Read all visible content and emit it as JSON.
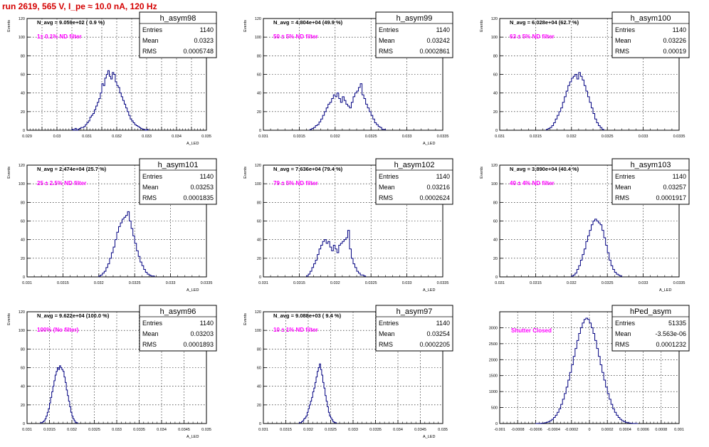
{
  "page": {
    "title": "run 2619,   565 V, I_pe ≈ 10.0 nA, 120 Hz",
    "colors": {
      "title": "#d40000",
      "annotation": "#ff00ff",
      "histogram": "#000080"
    }
  },
  "chart_data": [
    {
      "type": "bar",
      "hist_name": "h_asym98",
      "navg": "N_avg = 9.059e+02 ( 0.9 %)",
      "annotation": "1± 0.1% ND filter",
      "stats": {
        "entries": "1140",
        "mean": "0.0323",
        "rms": "0.0005748"
      },
      "ylabel": "Events",
      "xlabel": "A_LED",
      "xlim": [
        0.029,
        0.035
      ],
      "ylim": [
        0,
        120
      ],
      "xticks": [
        0.029,
        0.0295,
        0.03,
        0.0305,
        0.031,
        0.0315,
        0.032,
        0.0325,
        0.033,
        0.0335,
        0.034,
        0.0345,
        0.035
      ],
      "xtick_labels": [
        "0.029",
        "",
        "0.03",
        "",
        "0.031",
        "",
        "0.032",
        "",
        "0.033",
        "",
        "0.034",
        "",
        "0.035"
      ],
      "yticks": [
        0,
        20,
        40,
        60,
        80,
        100,
        120
      ],
      "bin_start": 0.0305,
      "bin_width": 5e-05,
      "values": [
        1,
        0,
        2,
        0,
        1,
        2,
        3,
        3,
        4,
        6,
        8,
        10,
        14,
        16,
        18,
        22,
        26,
        30,
        34,
        40,
        50,
        48,
        56,
        60,
        64,
        58,
        55,
        62,
        60,
        52,
        48,
        46,
        40,
        36,
        32,
        28,
        24,
        20,
        16,
        12,
        10,
        8,
        6,
        5,
        4,
        3,
        2,
        1,
        1,
        0,
        1
      ]
    },
    {
      "type": "bar",
      "hist_name": "h_asym99",
      "navg": "N_avg = 4.804e+04 (49.9 %)",
      "annotation": "50 ± 5% ND filter",
      "stats": {
        "entries": "1140",
        "mean": "0.03242",
        "rms": "0.0002861"
      },
      "ylabel": "Events",
      "xlabel": "A_LED",
      "xlim": [
        0.031,
        0.0335
      ],
      "ylim": [
        0,
        120
      ],
      "xticks": [
        0.031,
        0.0315,
        0.032,
        0.0325,
        0.033,
        0.0335
      ],
      "xtick_labels": [
        "0.031",
        "0.0315",
        "0.032",
        "0.0325",
        "0.033",
        "0.0335"
      ],
      "yticks": [
        0,
        20,
        40,
        60,
        80,
        100,
        120
      ],
      "bin_start": 0.03165,
      "bin_width": 2.5e-05,
      "values": [
        1,
        2,
        3,
        5,
        6,
        9,
        12,
        16,
        20,
        24,
        28,
        30,
        34,
        38,
        36,
        40,
        34,
        30,
        36,
        32,
        28,
        26,
        24,
        30,
        36,
        40,
        42,
        46,
        50,
        38,
        34,
        28,
        24,
        20,
        16,
        12,
        8,
        6,
        4,
        3,
        1,
        1
      ]
    },
    {
      "type": "bar",
      "hist_name": "h_asym100",
      "navg": "N_avg = 6.028e+04 (62.7 %)",
      "annotation": "63 ± 5% ND filter",
      "stats": {
        "entries": "1140",
        "mean": "0.03226",
        "rms": "0.00019"
      },
      "ylabel": "Events",
      "xlabel": "",
      "xlim": [
        0.031,
        0.0335
      ],
      "ylim": [
        0,
        120
      ],
      "xticks": [
        0.031,
        0.0315,
        0.032,
        0.0325,
        0.033,
        0.0335
      ],
      "xtick_labels": [
        "0.031",
        "0.0315",
        "0.032",
        "0.0325",
        "0.033",
        "0.0335"
      ],
      "yticks": [
        0,
        20,
        40,
        60,
        80,
        100,
        120
      ],
      "bin_start": 0.03165,
      "bin_width": 2.5e-05,
      "values": [
        1,
        2,
        3,
        5,
        8,
        12,
        16,
        20,
        24,
        30,
        36,
        42,
        48,
        52,
        56,
        58,
        60,
        55,
        62,
        58,
        54,
        48,
        42,
        36,
        30,
        24,
        18,
        12,
        8,
        5,
        3,
        1
      ]
    },
    {
      "type": "bar",
      "hist_name": "h_asym101",
      "navg": "N_avg = 2.474e+04 (25.7 %)",
      "annotation": "25 ± 2.5% ND filter",
      "stats": {
        "entries": "1140",
        "mean": "0.03253",
        "rms": "0.0001835"
      },
      "ylabel": "Events",
      "xlabel": "A_LED",
      "xlim": [
        0.031,
        0.0335
      ],
      "ylim": [
        0,
        120
      ],
      "xticks": [
        0.031,
        0.0315,
        0.032,
        0.0325,
        0.033,
        0.0335
      ],
      "xtick_labels": [
        "0.031",
        "0.0315",
        "0.032",
        "0.0325",
        "0.033",
        "0.0335"
      ],
      "yticks": [
        0,
        20,
        40,
        60,
        80,
        100,
        120
      ],
      "bin_start": 0.032,
      "bin_width": 2.5e-05,
      "values": [
        1,
        2,
        4,
        6,
        10,
        14,
        20,
        26,
        32,
        40,
        48,
        54,
        58,
        62,
        64,
        66,
        70,
        60,
        52,
        44,
        36,
        28,
        22,
        16,
        12,
        8,
        5,
        3,
        2,
        1,
        1
      ]
    },
    {
      "type": "bar",
      "hist_name": "h_asym102",
      "navg": "N_avg = 7.636e+04 (79.4 %)",
      "annotation": "79 ± 5% ND filter",
      "stats": {
        "entries": "1140",
        "mean": "0.03216",
        "rms": "0.0002624"
      },
      "ylabel": "Events",
      "xlabel": "A_LED",
      "xlim": [
        0.031,
        0.0335
      ],
      "ylim": [
        0,
        120
      ],
      "xticks": [
        0.031,
        0.0315,
        0.032,
        0.0325,
        0.033,
        0.0335
      ],
      "xtick_labels": [
        "0.031",
        "0.0315",
        "0.032",
        "0.0325",
        "0.033",
        "0.0335"
      ],
      "yticks": [
        0,
        20,
        40,
        60,
        80,
        100,
        120
      ],
      "bin_start": 0.0316,
      "bin_width": 2.5e-05,
      "values": [
        1,
        3,
        6,
        10,
        14,
        18,
        24,
        30,
        34,
        38,
        40,
        36,
        38,
        32,
        28,
        34,
        30,
        26,
        34,
        36,
        38,
        40,
        42,
        50,
        30,
        20,
        14,
        10,
        6,
        4,
        2,
        2,
        1
      ]
    },
    {
      "type": "bar",
      "hist_name": "h_asym103",
      "navg": "N_avg = 3.890e+04 (40.4 %)",
      "annotation": "40 ± 4% ND filter",
      "stats": {
        "entries": "1140",
        "mean": "0.03257",
        "rms": "0.0001917"
      },
      "ylabel": "Events",
      "xlabel": "A_LED",
      "xlim": [
        0.031,
        0.0335
      ],
      "ylim": [
        0,
        120
      ],
      "xticks": [
        0.031,
        0.0315,
        0.032,
        0.0325,
        0.033,
        0.0335
      ],
      "xtick_labels": [
        "0.031",
        "0.0315",
        "0.032",
        "0.0325",
        "0.033",
        "0.0335"
      ],
      "yticks": [
        0,
        20,
        40,
        60,
        80,
        100,
        120
      ],
      "bin_start": 0.032,
      "bin_width": 2.5e-05,
      "values": [
        1,
        2,
        4,
        8,
        12,
        18,
        24,
        30,
        38,
        44,
        50,
        56,
        60,
        62,
        60,
        58,
        56,
        50,
        42,
        34,
        26,
        18,
        12,
        8,
        5,
        3,
        2,
        1
      ]
    },
    {
      "type": "bar",
      "hist_name": "h_asym96",
      "navg": "N_avg = 9.622e+04 (100.0 %)",
      "annotation": "100% (No filter)",
      "stats": {
        "entries": "1140",
        "mean": "0.03203",
        "rms": "0.0001893"
      },
      "ylabel": "Events",
      "xlabel": "A_LED",
      "xlim": [
        0.031,
        0.035
      ],
      "ylim": [
        0,
        120
      ],
      "xticks": [
        0.031,
        0.0315,
        0.032,
        0.0325,
        0.033,
        0.0335,
        0.034,
        0.0345,
        0.035
      ],
      "xtick_labels": [
        "0.031",
        "0.0315",
        "0.032",
        "0.0325",
        "0.033",
        "0.0335",
        "0.034",
        "0.0345",
        "0.035"
      ],
      "yticks": [
        0,
        20,
        40,
        60,
        80,
        100,
        120
      ],
      "bin_start": 0.0313,
      "bin_width": 2.5e-05,
      "values": [
        1,
        1,
        2,
        3,
        5,
        8,
        12,
        16,
        22,
        28,
        34,
        40,
        46,
        52,
        56,
        60,
        58,
        62,
        60,
        58,
        56,
        50,
        44,
        36,
        30,
        24,
        18,
        12,
        8,
        5,
        3,
        1,
        1
      ]
    },
    {
      "type": "bar",
      "hist_name": "h_asym97",
      "navg": "N_avg = 9.088e+03 ( 9.4 %)",
      "annotation": "10 ± 1% ND filter",
      "stats": {
        "entries": "1140",
        "mean": "0.03254",
        "rms": "0.0002205"
      },
      "ylabel": "Events",
      "xlabel": "A_LED",
      "xlim": [
        0.031,
        0.035
      ],
      "ylim": [
        0,
        120
      ],
      "xticks": [
        0.031,
        0.0315,
        0.032,
        0.0325,
        0.033,
        0.0335,
        0.034,
        0.0345,
        0.035
      ],
      "xtick_labels": [
        "0.031",
        "0.0315",
        "0.032",
        "0.0325",
        "0.033",
        "0.0335",
        "0.034",
        "0.0345",
        "0.035"
      ],
      "yticks": [
        0,
        20,
        40,
        60,
        80,
        100,
        120
      ],
      "bin_start": 0.0318,
      "bin_width": 2.5e-05,
      "values": [
        1,
        1,
        2,
        3,
        5,
        6,
        8,
        12,
        16,
        20,
        24,
        28,
        34,
        38,
        44,
        50,
        56,
        60,
        64,
        58,
        52,
        44,
        38,
        30,
        24,
        18,
        12,
        8,
        6,
        4,
        2,
        1,
        1
      ]
    },
    {
      "type": "bar",
      "hist_name": "hPed_asym",
      "annotation": "Shutter Closed",
      "stats": {
        "entries": "51335",
        "mean": "-3.563e-06",
        "rms": "0.0001232"
      },
      "ylabel": "",
      "xlabel": "",
      "xlim": [
        -0.001,
        0.001
      ],
      "ylim": [
        0,
        3500
      ],
      "xticks": [
        -0.001,
        -0.0008,
        -0.0006,
        -0.0004,
        -0.0002,
        0,
        0.0002,
        0.0004,
        0.0006,
        0.0008,
        0.001
      ],
      "xtick_labels": [
        "-0.001",
        "-0.0008",
        "-0.0006",
        "-0.0004",
        "-0.0002",
        "0",
        "0.0002",
        "0.0004",
        "0.0006",
        "0.0008",
        "0.001"
      ],
      "yticks": [
        0,
        500,
        1000,
        1500,
        2000,
        2500,
        3000
      ],
      "bin_start": -0.0006,
      "bin_width": 2e-05,
      "values": [
        1,
        2,
        4,
        8,
        14,
        24,
        40,
        60,
        90,
        130,
        190,
        260,
        350,
        460,
        600,
        760,
        940,
        1140,
        1360,
        1600,
        1840,
        2100,
        2350,
        2600,
        2820,
        3000,
        3150,
        3260,
        3300,
        3260,
        3150,
        3000,
        2820,
        2600,
        2350,
        2100,
        1840,
        1600,
        1360,
        1140,
        940,
        760,
        600,
        460,
        350,
        260,
        190,
        130,
        90,
        60,
        40,
        24,
        14,
        8,
        4,
        2,
        1
      ]
    }
  ]
}
